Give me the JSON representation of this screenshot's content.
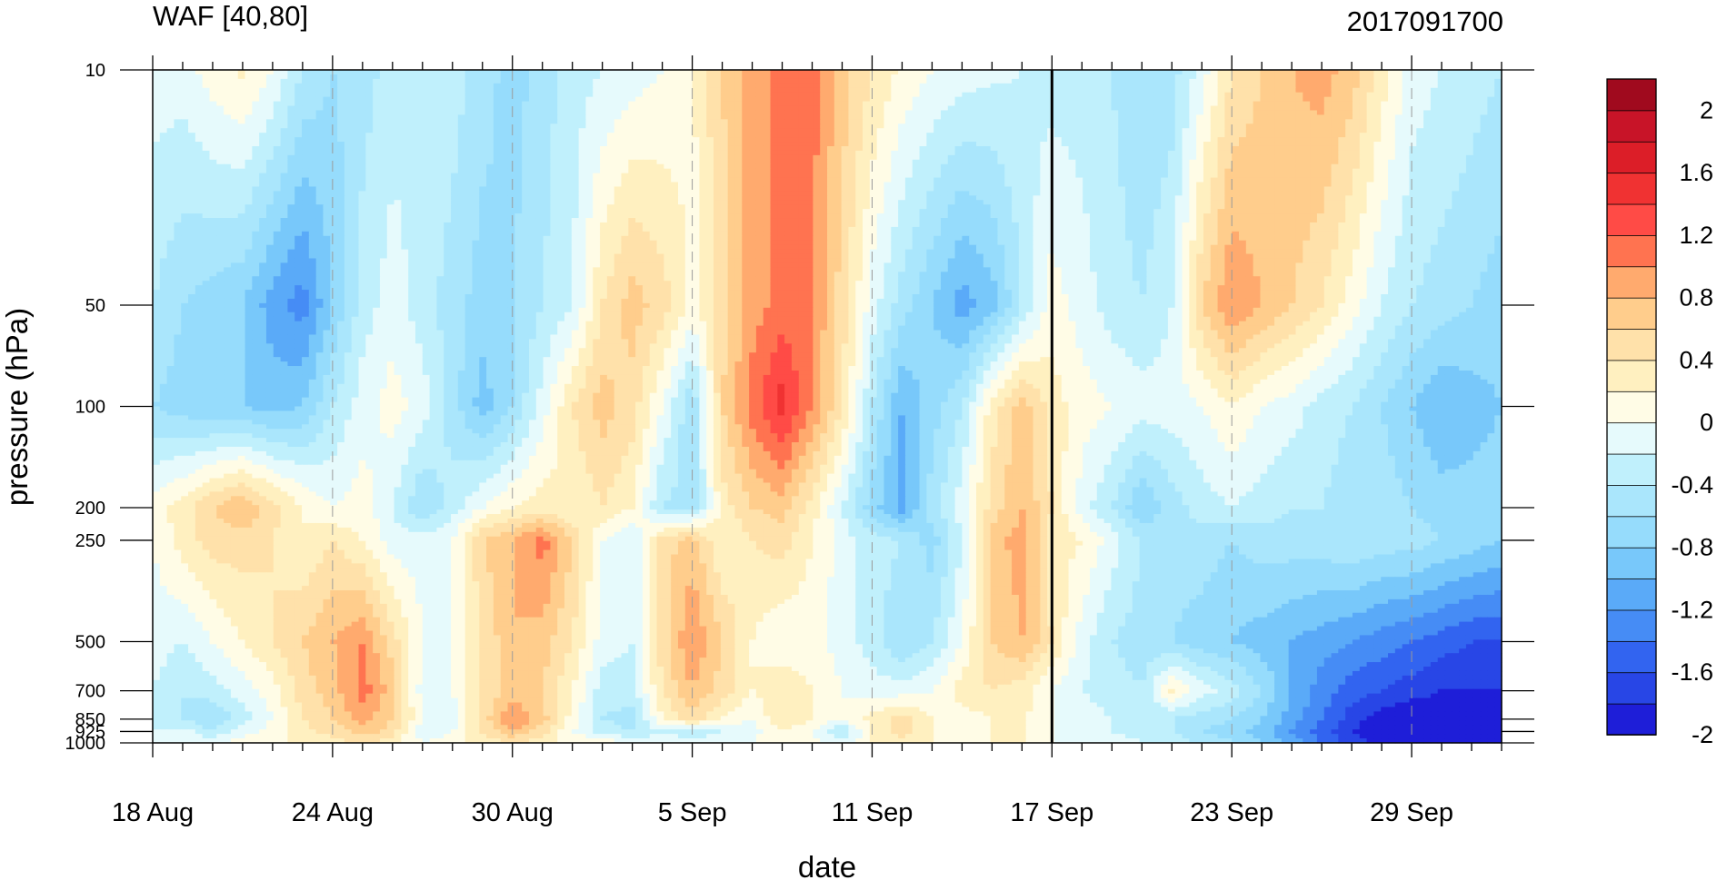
{
  "chart_data": {
    "type": "heatmap",
    "subtype": "filled-contour (time-pressure cross section)",
    "title_left": "WAF [40,80]",
    "title_right": "2017091700",
    "xlabel": "date",
    "ylabel": "pressure (hPa)",
    "x_tick_labels": [
      "18 Aug",
      "24 Aug",
      "30 Aug",
      "5 Sep",
      "11 Sep",
      "17 Sep",
      "23 Sep",
      "29 Sep"
    ],
    "x_range": [
      "2017-08-18",
      "2017-10-02"
    ],
    "y_scale": "log (inverted)",
    "y_range": [
      1000,
      10
    ],
    "y_tick_labels": [
      "10",
      "50",
      "100",
      "200",
      "250",
      "500",
      "700",
      "850",
      "925",
      "1000"
    ],
    "y_levels": [
      10,
      50,
      100,
      200,
      250,
      500,
      700,
      850,
      925,
      1000
    ],
    "x_dates": [
      "08-18",
      "08-19",
      "08-20",
      "08-21",
      "08-22",
      "08-23",
      "08-24",
      "08-25",
      "08-26",
      "08-27",
      "08-28",
      "08-29",
      "08-30",
      "08-31",
      "09-01",
      "09-02",
      "09-03",
      "09-04",
      "09-05",
      "09-06",
      "09-07",
      "09-08",
      "09-09",
      "09-10",
      "09-11",
      "09-12",
      "09-13",
      "09-14",
      "09-15",
      "09-16",
      "09-17",
      "09-18",
      "09-19",
      "09-20",
      "09-21",
      "09-22",
      "09-23",
      "09-24",
      "09-25",
      "09-26",
      "09-27",
      "09-28",
      "09-29",
      "09-30",
      "10-01",
      "10-02"
    ],
    "marker_date": "17 Sep",
    "colorbar": {
      "labels": [
        "2",
        "1.6",
        "1.2",
        "0.8",
        "0.4",
        "0",
        "-0.4",
        "-0.8",
        "-1.2",
        "-1.6",
        "-2"
      ],
      "levels": [
        -2.2,
        -2,
        -1.8,
        -1.6,
        -1.4,
        -1.2,
        -1.0,
        -0.8,
        -0.6,
        -0.4,
        -0.2,
        0,
        0.2,
        0.4,
        0.6,
        0.8,
        1.0,
        1.2,
        1.4,
        1.6,
        1.8,
        2.0,
        2.2
      ],
      "colors": [
        "#1e1ed8",
        "#2846e6",
        "#3264f0",
        "#468cf5",
        "#5aaaf8",
        "#78c8fa",
        "#96dcfc",
        "#aae6fc",
        "#c0f0fc",
        "#e6fafc",
        "#fffce6",
        "#fff0c0",
        "#ffe1aa",
        "#ffcd8c",
        "#ffaa6e",
        "#ff7350",
        "#ff4b46",
        "#f03232",
        "#dc1e28",
        "#c81428",
        "#a00a1e"
      ]
    },
    "grid_rows": [
      [
        -0.3,
        -0.3,
        -0.1,
        0.05,
        -0.2,
        -0.6,
        -0.8,
        -0.7,
        -0.5,
        -0.4,
        -0.5,
        -0.7,
        -0.9,
        -0.7,
        -0.5,
        -0.4,
        -0.3,
        -0.2,
        -0.05,
        0.4,
        0.7,
        0.9,
        0.9,
        0.5,
        0.2,
        -0.05,
        -0.2,
        -0.3,
        -0.35,
        -0.4,
        -0.5,
        -0.5,
        -0.6,
        -0.8,
        -0.7,
        -0.3,
        0.2,
        0.4,
        0.6,
        0.7,
        0.5,
        0.1,
        -0.3,
        -0.4,
        -0.5,
        -0.6
      ],
      [
        -0.6,
        -0.8,
        -0.9,
        -1.0,
        -1.3,
        -1.5,
        -1.0,
        -0.5,
        -0.3,
        -0.5,
        -0.7,
        -0.9,
        -0.8,
        -0.6,
        -0.4,
        0.2,
        0.5,
        0.3,
        -0.05,
        0.3,
        0.7,
        0.9,
        0.8,
        0.3,
        -0.3,
        -0.7,
        -1.0,
        -1.3,
        -1.1,
        -0.6,
        -0.1,
        -0.3,
        -0.5,
        -0.6,
        -0.4,
        0.4,
        0.8,
        0.6,
        0.4,
        0.2,
        -0.1,
        -0.4,
        -0.6,
        -0.7,
        -0.8,
        -0.9
      ],
      [
        -0.8,
        -0.9,
        -1.0,
        -1.0,
        -1.1,
        -1.0,
        -0.6,
        -0.3,
        -0.1,
        -0.3,
        -0.7,
        -1.1,
        -0.8,
        -0.3,
        0.2,
        0.5,
        0.3,
        -0.2,
        -0.8,
        0.4,
        0.9,
        1.3,
        0.8,
        0.2,
        -0.6,
        -1.2,
        -0.9,
        -0.6,
        0.1,
        0.5,
        0.1,
        -0.1,
        -0.2,
        -0.3,
        -0.3,
        -0.2,
        0.0,
        -0.2,
        -0.3,
        -0.5,
        -0.6,
        -0.8,
        -1.0,
        -1.2,
        -1.1,
        -1.0
      ],
      [
        -0.1,
        0.1,
        0.4,
        0.6,
        0.3,
        0.0,
        -0.2,
        -0.1,
        -0.4,
        -0.8,
        -0.5,
        -0.2,
        0.0,
        0.1,
        0.0,
        0.2,
        0.0,
        -0.6,
        -0.7,
        0.1,
        0.4,
        0.5,
        0.1,
        -0.4,
        -0.9,
        -1.3,
        -0.7,
        -0.3,
        0.3,
        0.6,
        0.2,
        -0.3,
        -0.6,
        -1.0,
        -0.7,
        -0.5,
        -0.4,
        -0.5,
        -0.6,
        -0.6,
        -0.7,
        -0.7,
        -0.8,
        -0.9,
        -0.9,
        -0.9
      ],
      [
        -0.2,
        0.1,
        0.3,
        0.3,
        0.2,
        0.0,
        0.2,
        0.0,
        -0.3,
        -0.3,
        -0.2,
        0.4,
        0.6,
        0.9,
        0.4,
        -0.2,
        -0.4,
        0.3,
        0.5,
        0.0,
        0.2,
        0.3,
        0.0,
        -0.3,
        -0.5,
        -0.6,
        -0.9,
        -0.4,
        0.5,
        0.7,
        0.1,
        0.0,
        -0.3,
        -0.6,
        -0.7,
        -0.7,
        -0.8,
        -0.7,
        -0.7,
        -0.7,
        -0.6,
        -0.7,
        -0.7,
        -0.8,
        -0.9,
        -1.0
      ],
      [
        -0.3,
        -0.4,
        -0.2,
        0.0,
        0.2,
        0.4,
        0.6,
        0.8,
        0.3,
        -0.2,
        -0.2,
        0.2,
        0.6,
        0.5,
        0.2,
        -0.3,
        -0.4,
        0.3,
        0.8,
        0.4,
        0.0,
        -0.2,
        -0.1,
        -0.3,
        -0.5,
        -0.8,
        -0.6,
        -0.2,
        0.4,
        0.6,
        0.2,
        -0.3,
        -0.6,
        -0.7,
        -0.8,
        -0.9,
        -1.0,
        -1.1,
        -1.2,
        -1.3,
        -1.4,
        -1.5,
        -1.6,
        -1.7,
        -1.8,
        -1.8
      ],
      [
        -0.4,
        -0.6,
        -0.5,
        -0.3,
        -0.1,
        0.3,
        0.5,
        0.9,
        0.5,
        -0.3,
        -0.2,
        0.2,
        0.5,
        0.4,
        0.0,
        -0.5,
        -0.5,
        0.2,
        0.6,
        0.3,
        0.0,
        0.2,
        0.0,
        -0.2,
        -0.3,
        -0.3,
        -0.2,
        0.1,
        0.2,
        0.1,
        -0.2,
        -0.4,
        -0.5,
        -0.6,
        0.05,
        -0.3,
        -0.5,
        -0.8,
        -1.2,
        -1.5,
        -1.7,
        -1.8,
        -1.9,
        -2.0,
        -2.0,
        -2.0
      ],
      [
        -0.5,
        -0.6,
        -0.8,
        -0.5,
        -0.2,
        0.2,
        0.4,
        0.7,
        0.4,
        -0.2,
        -0.3,
        0.3,
        0.8,
        0.5,
        -0.1,
        -0.6,
        -0.7,
        0.0,
        0.3,
        0.0,
        -0.2,
        0.2,
        0.0,
        -0.2,
        0.1,
        0.3,
        0.0,
        -0.1,
        0.0,
        0.05,
        -0.2,
        -0.3,
        -0.4,
        -0.5,
        -0.6,
        -0.7,
        -0.8,
        -1.0,
        -1.3,
        -1.6,
        -1.9,
        -2.1,
        -2.2,
        -2.2,
        -2.2,
        -2.2
      ],
      [
        -0.4,
        -0.3,
        -0.6,
        -0.3,
        -0.1,
        0.1,
        0.3,
        0.5,
        0.3,
        -0.4,
        -0.2,
        0.2,
        0.6,
        0.3,
        -0.2,
        -0.5,
        -0.6,
        -0.4,
        -0.6,
        -0.4,
        -0.3,
        0.0,
        -0.2,
        -0.6,
        0.0,
        0.3,
        0.0,
        -0.1,
        0.0,
        0.05,
        -0.2,
        -0.3,
        -0.4,
        -0.5,
        -0.6,
        -0.8,
        -0.9,
        -1.1,
        -1.4,
        -1.7,
        -2.0,
        -2.2,
        -2.3,
        -2.3,
        -2.3,
        -2.3
      ],
      [
        -0.3,
        -0.3,
        -0.2,
        -0.1,
        0.0,
        0.0,
        0.1,
        0.2,
        0.1,
        -0.2,
        -0.1,
        0.1,
        0.2,
        0.1,
        -0.1,
        0.05,
        -0.3,
        -0.3,
        -0.2,
        -0.3,
        -0.2,
        0.0,
        -0.1,
        -0.3,
        0.0,
        0.1,
        0.0,
        0.0,
        0.0,
        0.05,
        -0.2,
        -0.3,
        -0.3,
        -0.4,
        -0.5,
        -0.6,
        -0.8,
        -1.0,
        -1.3,
        -1.6,
        -1.9,
        -2.1,
        -2.2,
        -2.2,
        -2.2,
        -2.2
      ]
    ]
  }
}
